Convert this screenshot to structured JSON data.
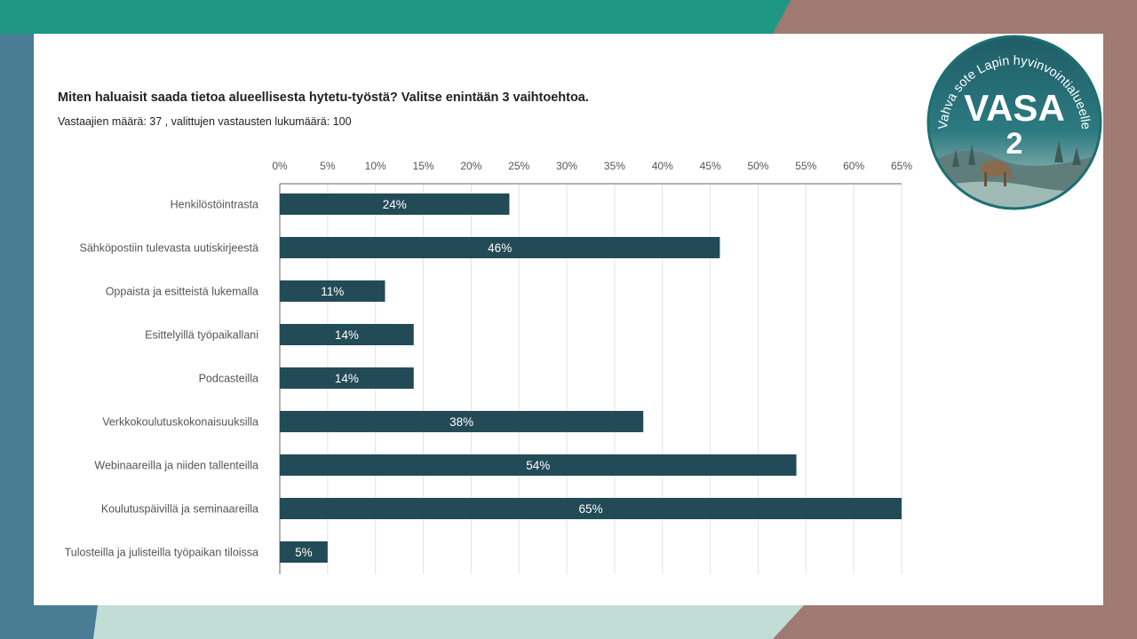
{
  "slide": {
    "title": "Miten haluaisit saada tietoa alueellisesta hytetu-työstä? Valitse enintään 3 vaihtoehtoa.",
    "subtitle": "Vastaajien määrä: 37 , valittujen vastausten lukumäärä: 100"
  },
  "logo": {
    "ring_text": "Vahva sote Lapin hyvinvointialueelle",
    "name": "VASA",
    "number": "2"
  },
  "colors": {
    "bar": "#234b57",
    "axis_text": "#555555",
    "grid": "#e3e3e3",
    "teal": "#1e9784",
    "steel_blue": "#4a7d94",
    "mauve": "#9e7a72",
    "mint": "#c2ddd6"
  },
  "chart_data": {
    "type": "bar",
    "orientation": "horizontal",
    "categories": [
      "Henkilöstöintrasta",
      "Sähköpostiin tulevasta uutiskirjeestä",
      "Oppaista ja esitteistä lukemalla",
      "Esittelyillä työpaikallani",
      "Podcasteilla",
      "Verkkokoulutuskokonaisuuksilla",
      "Webinaareilla ja niiden tallenteilla",
      "Koulutuspäivillä ja seminaareilla",
      "Tulosteilla ja julisteilla työpaikan tiloissa"
    ],
    "values": [
      24,
      46,
      11,
      14,
      14,
      38,
      54,
      65,
      5
    ],
    "value_labels": [
      "24%",
      "46%",
      "11%",
      "14%",
      "14%",
      "38%",
      "54%",
      "65%",
      "5%"
    ],
    "xlim": [
      0,
      65
    ],
    "x_ticks": [
      "0%",
      "5%",
      "10%",
      "15%",
      "20%",
      "25%",
      "30%",
      "35%",
      "40%",
      "45%",
      "50%",
      "55%",
      "60%",
      "65%"
    ],
    "x_axis_position": "top",
    "grid": true,
    "legend": "none"
  }
}
